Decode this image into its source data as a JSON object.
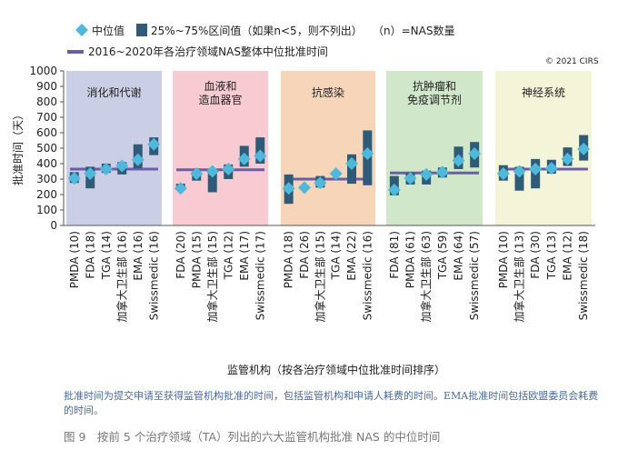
{
  "chart_data": {
    "type": "box",
    "legend": {
      "median": "中位值",
      "iqr": "25%~75%区间值（如果n<5，则不列出）",
      "n_note": "（n）=NAS数量",
      "overall": "2016~2020年各治疗领域NAS整体中位批准时间"
    },
    "copyright": "© 2021 CIRS",
    "y_label": "批准时间（天）",
    "x_label": "监管机构（按各治疗领域中位批准时间排序）",
    "ylim": [
      0,
      1000
    ],
    "yticks": [
      0,
      100,
      200,
      300,
      400,
      500,
      600,
      700,
      800,
      900,
      1000
    ],
    "colors": {
      "median": "#4fb8db",
      "box": "#2f5b78",
      "overall": "#6b5ea6"
    },
    "panels": [
      {
        "title": "消化和代谢",
        "color": "#cbcfe6",
        "categories": [
          "PMDA (10)",
          "FDA (18)",
          "TGA (14)",
          "加拿大卫生部 (16)",
          "EMA (16)",
          "Swissmedic (16)"
        ],
        "median": [
          305,
          335,
          365,
          385,
          425,
          525
        ],
        "q1": [
          275,
          240,
          340,
          330,
          370,
          455
        ],
        "q3": [
          345,
          380,
          400,
          410,
          525,
          570
        ],
        "overall": 365
      },
      {
        "title": "血液和\n造血器官",
        "color": "#f7cbd1",
        "categories": [
          "FDA (20)",
          "PMDA (15)",
          "加拿大卫生部 (15)",
          "TGA (12)",
          "EMA (17)",
          "Swissmedic (17)"
        ],
        "median": [
          240,
          335,
          350,
          365,
          430,
          450
        ],
        "q1": [
          230,
          290,
          215,
          300,
          380,
          400
        ],
        "q3": [
          270,
          350,
          360,
          395,
          515,
          570
        ],
        "overall": 360
      },
      {
        "title": "抗感染",
        "color": "#f6d5b8",
        "categories": [
          "PMDA (18)",
          "FDA (26)",
          "加拿大卫生部 (15)",
          "TGA (14)",
          "EMA (22)",
          "Swissmedic (16)"
        ],
        "median": [
          240,
          245,
          275,
          335,
          400,
          465
        ],
        "q1": [
          140,
          null,
          245,
          null,
          270,
          260
        ],
        "q3": [
          330,
          null,
          320,
          null,
          460,
          615
        ],
        "overall": 300
      },
      {
        "title": "抗肿瘤和\n免疫调节剂",
        "color": "#d0e7c9",
        "categories": [
          "FDA (81)",
          "PMDA (61)",
          "加拿大卫生部 (63)",
          "TGA (59)",
          "EMA (64)",
          "Swissmedic (57)"
        ],
        "median": [
          230,
          305,
          330,
          345,
          420,
          465
        ],
        "q1": [
          195,
          265,
          265,
          310,
          365,
          375
        ],
        "q3": [
          320,
          340,
          355,
          375,
          510,
          540
        ],
        "overall": 340
      },
      {
        "title": "神经系统",
        "color": "#f4f4d8",
        "categories": [
          "PMDA (10)",
          "加拿大卫生部 (13)",
          "FDA (30)",
          "TGA (13)",
          "EMA (12)",
          "Swissmedic (18)"
        ],
        "median": [
          335,
          350,
          365,
          370,
          430,
          495
        ],
        "q1": [
          290,
          225,
          240,
          335,
          385,
          420
        ],
        "q3": [
          390,
          380,
          430,
          425,
          505,
          585
        ],
        "overall": 365
      }
    ]
  },
  "note": "批准时间为提交申请至获得监管机构批准的时间，包括监管机构和申请人耗费的时间。EMA批准时间包括欧盟委员会耗费的时间。",
  "caption": "图 9　按前 5 个治疗领域（TA）列出的六大监管机构批准 NAS 的中位时间"
}
